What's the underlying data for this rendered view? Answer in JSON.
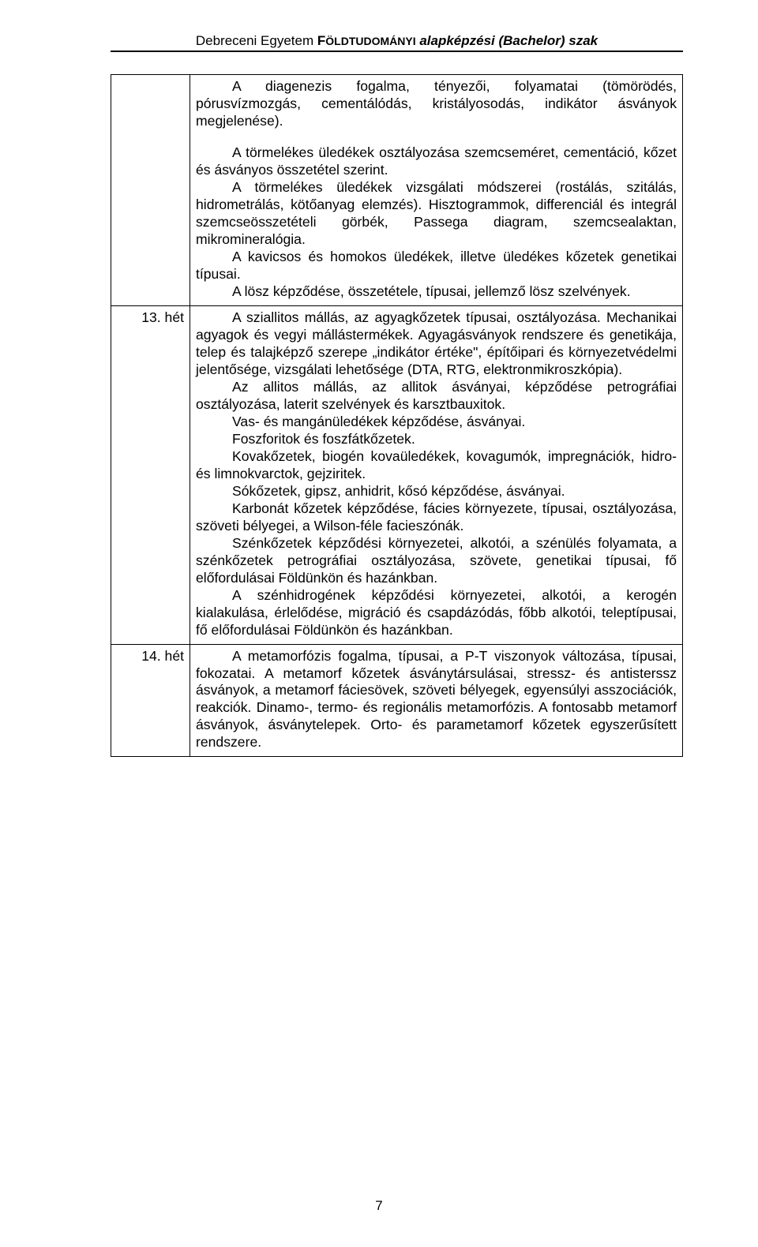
{
  "header": {
    "prefix": "Debreceni Egyetem ",
    "smallcaps1": "F",
    "smallcaps_rest": "ÖLDTUDOMÁNYI",
    "italic": " alapképzési (Bachelor) szak"
  },
  "page_number": "7",
  "rows": [
    {
      "week": "",
      "paragraphs": [
        "A diagenezis fogalma, tényezői, folyamatai (tömörödés, pórusvízmozgás, cementálódás, kristályosodás, indikátor ásványok megjelenése).",
        "",
        "A törmelékes üledékek osztályozása szemcseméret, cementáció, kőzet és ásványos összetétel szerint.",
        "A törmelékes üledékek vizsgálati módszerei (rostálás, szitálás, hidrometrálás, kötőanyag elemzés). Hisztogrammok, differenciál és integrál szemcseösszetételi görbék, Passega diagram, szemcsealaktan, mikromineralógia.",
        "A kavicsos és homokos üledékek, illetve üledékes kőzetek genetikai típusai.",
        "A lösz képződése, összetétele, típusai, jellemző lösz szelvények."
      ]
    },
    {
      "week": "13. hét",
      "paragraphs": [
        "A sziallitos mállás, az agyagkőzetek típusai, osztályozása. Mechanikai agyagok és vegyi mállástermékek. Agyagásványok rendszere és genetikája, telep és talajképző szerepe „indikátor értéke\", építőipari és környezetvédelmi jelentősége, vizsgálati lehetősége (DTA, RTG, elektronmikroszkópia).",
        "Az allitos mállás, az allitok ásványai, képződése petrográfiai osztályozása, laterit szelvények és karsztbauxitok.",
        "Vas- és mangánüledékek képződése, ásványai.",
        "Foszforitok és foszfátkőzetek.",
        "Kovakőzetek, biogén kovaüledékek, kovagumók, impregnációk, hidro- és limnokvarctok, gejziritek.",
        "Sókőzetek, gipsz, anhidrit, kősó képződése, ásványai.",
        "Karbonát kőzetek képződése, fácies környezete, típusai, osztályozása, szöveti bélyegei, a Wilson-féle facieszónák.",
        "Szénkőzetek képződési környezetei, alkotói, a szénülés folyamata, a szénkőzetek petrográfiai osztályozása, szövete, genetikai típusai, fő előfordulásai Földünkön és hazánkban.",
        "A szénhidrogének képződési környezetei, alkotói, a kerogén kialakulása, érlelődése, migráció és csapdázódás, főbb alkotói, teleptípusai, fő előfordulásai Földünkön és hazánkban."
      ]
    },
    {
      "week": "14. hét",
      "paragraphs": [
        "A metamorfózis fogalma, típusai, a P-T viszonyok változása, típusai, fokozatai. A metamorf kőzetek ásványtársulásai, stressz- és antisterssz ásványok, a metamorf fáciesövek, szöveti bélyegek, egyensúlyi asszociációk, reakciók. Dinamo-, termo- és regionális metamorfózis. A fontosabb metamorf ásványok, ásványtelepek. Orto- és parametamorf kőzetek egyszerűsített rendszere."
      ]
    }
  ]
}
